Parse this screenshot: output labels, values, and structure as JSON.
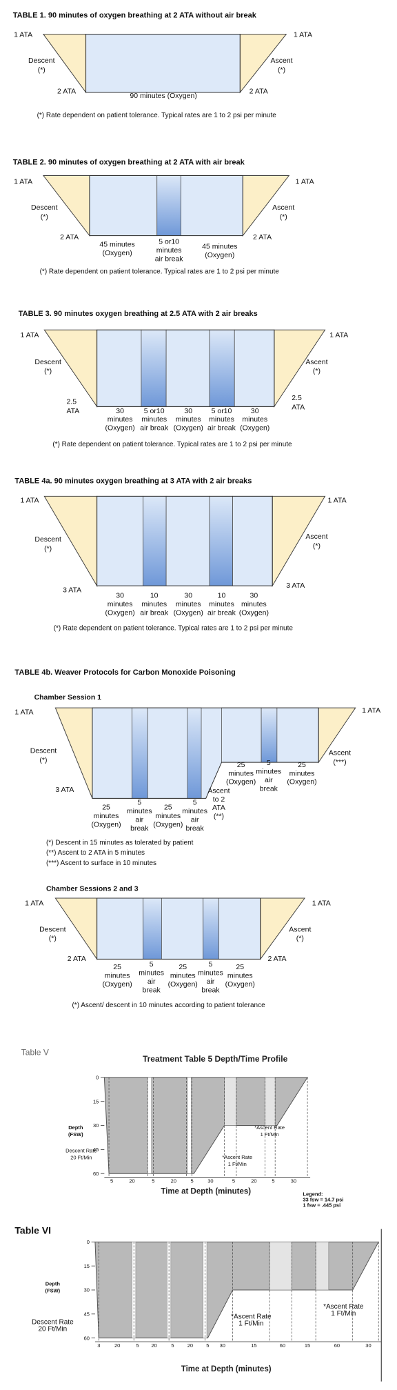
{
  "tables": [
    {
      "title": "TABLE 1.  90 minutes of oxygen breathing at 2 ATA without air break",
      "surface_left": "1 ATA",
      "surface_right": "1 ATA",
      "descent": [
        "Descent",
        "(*)"
      ],
      "ascent": [
        "Ascent",
        "(*)"
      ],
      "depth_left": [
        "2 ATA"
      ],
      "depth_right": [
        "2 ATA"
      ],
      "segments": [
        [
          "90 minutes (Oxygen)"
        ]
      ],
      "notes": [
        "(*) Rate dependent on patient tolerance. Typical rates are 1 to 2 psi per minute"
      ]
    },
    {
      "title": "TABLE 2. 90 minutes of oxygen breathing at 2 ATA with air break",
      "surface_left": "1 ATA",
      "surface_right": "1 ATA",
      "descent": [
        "Descent",
        "(*)"
      ],
      "ascent": [
        "Ascent",
        "(*)"
      ],
      "depth_left": [
        "2 ATA"
      ],
      "depth_right": [
        "2 ATA"
      ],
      "segments": [
        [
          "45 minutes",
          "(Oxygen)"
        ],
        [
          "5 or10",
          "minutes",
          "air break"
        ],
        [
          "45 minutes",
          "(Oxygen)"
        ]
      ],
      "notes": [
        "(*) Rate dependent on patient tolerance. Typical rates are 1 to 2 psi per minute"
      ]
    },
    {
      "title": "TABLE 3. 90 minutes oxygen breathing at 2.5 ATA with 2 air breaks",
      "surface_left": "1 ATA",
      "surface_right": "1 ATA",
      "descent": [
        "Descent",
        "(*)"
      ],
      "ascent": [
        "Ascent",
        "(*)"
      ],
      "depth_left": [
        "2.5",
        "ATA"
      ],
      "depth_right": [
        "2.5",
        "ATA"
      ],
      "segments": [
        [
          "30",
          "minutes",
          "(Oxygen)"
        ],
        [
          "5 or10",
          "minutes",
          "air break"
        ],
        [
          "30",
          "minutes",
          "(Oxygen)"
        ],
        [
          "5 or10",
          "minutes",
          "air break"
        ],
        [
          "30",
          "minutes",
          "(Oxygen)"
        ]
      ],
      "notes": [
        "(*) Rate dependent on patient tolerance. Typical rates are 1 to 2 psi per minute"
      ]
    },
    {
      "title": "TABLE 4a. 90 minutes oxygen breathing at 3 ATA with 2 air breaks",
      "surface_left": "1 ATA",
      "surface_right": "1 ATA",
      "descent": [
        "Descent",
        "(*)"
      ],
      "ascent": [
        "Ascent",
        "(*)"
      ],
      "depth_left": [
        "3 ATA"
      ],
      "depth_right": [
        "3 ATA"
      ],
      "segments": [
        [
          "30",
          "minutes",
          "(Oxygen)"
        ],
        [
          "10",
          "minutes",
          "air break"
        ],
        [
          "30",
          "minutes",
          "(Oxygen)"
        ],
        [
          "10",
          "minutes",
          "air break"
        ],
        [
          "30",
          "minutes",
          "(Oxygen)"
        ]
      ],
      "notes": [
        "(*) Rate dependent on patient tolerance. Typical rates are 1 to 2 psi per minute"
      ]
    },
    {
      "title": "TABLE 4b. Weaver Protocols for Carbon Monoxide Poisoning",
      "subtitle": "Chamber Session 1",
      "surface_left": "1 ATA",
      "surface_right": "1 ATA",
      "descent": [
        "Descent",
        "(*)"
      ],
      "ascent": [
        "Ascent",
        "(***)"
      ],
      "depth_left": [
        "3 ATA"
      ],
      "segments": [
        [
          "25",
          "minutes",
          "(Oxygen)"
        ],
        [
          "5",
          "minutes",
          "air",
          "break"
        ],
        [
          "25",
          "minutes",
          "(Oxygen)"
        ],
        [
          "5",
          "minutes",
          "air",
          "break"
        ],
        [
          "Ascent",
          "to 2",
          "ATA",
          "(**)"
        ],
        [
          "25",
          "minutes",
          "(Oxygen)"
        ],
        [
          "5",
          "minutes",
          "air",
          "break"
        ],
        [
          "25",
          "minutes",
          "(Oxygen)"
        ]
      ],
      "notes": [
        "(*) Descent in 15 minutes as tolerated by patient",
        "(**) Ascent to 2 ATA in 5 minutes",
        "(***) Ascent to surface in 10 minutes"
      ]
    },
    {
      "subtitle": "Chamber Sessions 2 and 3",
      "surface_left": "1 ATA",
      "surface_right": "1 ATA",
      "descent": [
        "Descent",
        "(*)"
      ],
      "ascent": [
        "Ascent",
        "(*)"
      ],
      "depth_left": [
        "2 ATA"
      ],
      "depth_right": [
        "2 ATA"
      ],
      "segments": [
        [
          "25",
          "minutes",
          "(Oxygen)"
        ],
        [
          "5",
          "minutes",
          "air",
          "break"
        ],
        [
          "25",
          "minutes",
          "(Oxygen)"
        ],
        [
          "5",
          "minutes",
          "air",
          "break"
        ],
        [
          "25",
          "minutes",
          "(Oxygen)"
        ]
      ],
      "notes": [
        "(*) Ascent/ descent in 10 minutes according to patient tolerance"
      ]
    }
  ],
  "profiles": [
    {
      "label": "Table V",
      "title": "Treatment Table 5 Depth/Time Profile",
      "y_label": [
        "Depth",
        "(FSW)"
      ],
      "depth_ticks": [
        0,
        15,
        30,
        45,
        60
      ],
      "time_labels": [
        "5",
        "20",
        "5",
        "20",
        "5",
        "30",
        "5",
        "20",
        "5",
        "30"
      ],
      "descent_rate": [
        "Descent Rate",
        "20 Ft/Min"
      ],
      "ascent_rates": [
        [
          "*Ascent Rate",
          "1 Ft/Min"
        ],
        [
          "*Ascent Rate",
          "1 Ft/Min"
        ]
      ],
      "x_label": "Time at Depth (minutes)",
      "legend": [
        "Legend:",
        "33 fsw = 14.7 psi",
        "1 fsw = .445 psi"
      ]
    },
    {
      "label": "Table VI",
      "y_label": [
        "Depth",
        "(FSW)"
      ],
      "depth_ticks": [
        0,
        15,
        30,
        45,
        60
      ],
      "time_labels": [
        "3",
        "20",
        "5",
        "20",
        "5",
        "20",
        "5",
        "30",
        "15",
        "60",
        "15",
        "60",
        "30"
      ],
      "descent_rate": [
        "Descent Rate",
        "20 Ft/Min"
      ],
      "ascent_rates": [
        [
          "*Ascent Rate",
          "1 Ft/Min"
        ],
        [
          "*Ascent Rate",
          "1 Ft/Min"
        ]
      ],
      "x_label": "Time at Depth (minutes)"
    }
  ]
}
